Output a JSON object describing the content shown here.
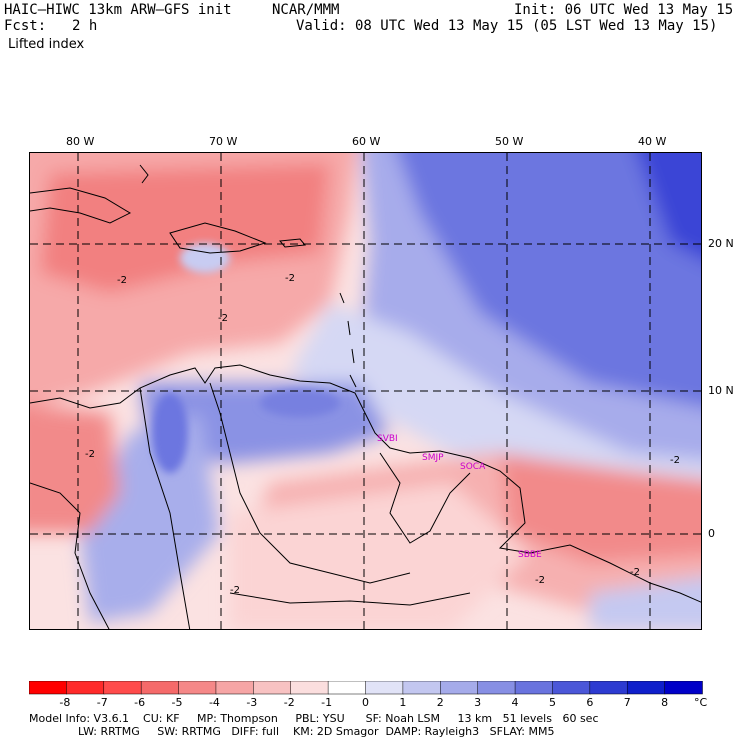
{
  "header": {
    "model": "HAIC–HIWC 13km ARW–GFS init",
    "center": "NCAR/MMM",
    "init": "Init: 06 UTC Wed 13 May 15",
    "fcst_label": "Fcst:",
    "fcst_value": "2 h",
    "valid": "Valid: 08 UTC Wed 13 May 15 (05 LST Wed 13 May 15)",
    "field": "Lifted index"
  },
  "map": {
    "lon_labels": [
      "80 W",
      "70 W",
      "60 W",
      "50 W",
      "40 W"
    ],
    "lat_labels": [
      "20 N",
      "10 N",
      "0"
    ],
    "contour_labels": [
      "-2",
      "-2",
      "-2",
      "-2",
      "-2",
      "-2",
      "-2",
      "-2"
    ],
    "stations": [
      "SVBI",
      "SMJP",
      "SOCA",
      "SBBE"
    ],
    "station_color": "#cc00cc"
  },
  "colorbar": {
    "values": [
      "-8",
      "-7",
      "-6",
      "-5",
      "-4",
      "-3",
      "-2",
      "-1",
      "0",
      "1",
      "2",
      "3",
      "4",
      "5",
      "6",
      "7",
      "8"
    ],
    "unit": "°C",
    "colors": [
      "#ff0000",
      "#ff2a2a",
      "#ff4b4b",
      "#f56a6a",
      "#f58888",
      "#f6a5a5",
      "#f8c2c2",
      "#fbdede",
      "#ffffff",
      "#e1e3f7",
      "#c3c7f0",
      "#a5abea",
      "#878fe4",
      "#6973de",
      "#4b57d8",
      "#2d3bd1",
      "#0f1fcb",
      "#0000c8"
    ]
  },
  "footer": {
    "line1": "Model Info: V3.6.1    CU: KF     MP: Thompson     PBL: YSU      SF: Noah LSM     13 km   51 levels   60 sec",
    "line2": "              LW: RRTMG     SW: RRTMG   DIFF: full    KM: 2D Smagor  DAMP: Rayleigh3   SFLAY: MM5"
  }
}
